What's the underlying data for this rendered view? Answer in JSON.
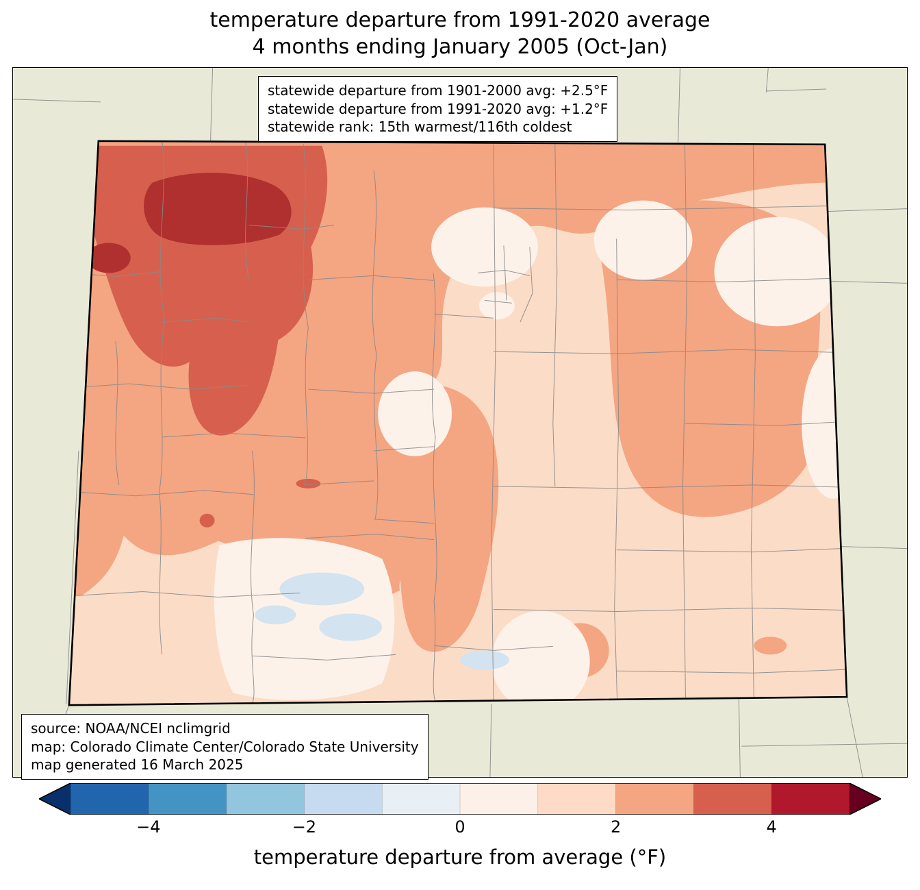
{
  "title": {
    "line1": "temperature departure from 1991-2020 average",
    "line2": "4 months ending January 2005 (Oct-Jan)"
  },
  "stats_box": {
    "line1": "statewide departure from 1901-2000 avg: +2.5°F",
    "line2": "statewide departure from 1991-2020 avg: +1.2°F",
    "line3": "statewide rank: 15th warmest/116th coldest"
  },
  "source_box": {
    "line1": "source: NOAA/NCEI nclimgrid",
    "line2": "map: Colorado Climate Center/Colorado State University",
    "line3": "map generated 16 March 2025"
  },
  "colorbar": {
    "label": "temperature departure from average (°F)",
    "vmin": -5,
    "vmax": 5,
    "ticks": [
      {
        "label": "−4",
        "value": -4
      },
      {
        "label": "−2",
        "value": -2
      },
      {
        "label": "0",
        "value": 0
      },
      {
        "label": "2",
        "value": 2
      },
      {
        "label": "4",
        "value": 4
      }
    ],
    "colors": [
      "#08306b",
      "#2166ac",
      "#4393c3",
      "#92c5de",
      "#c6dbef",
      "#e8f0f6",
      "#fdf0e8",
      "#fddbc7",
      "#f4a582",
      "#d6604d",
      "#b2182b",
      "#67001f"
    ]
  },
  "map": {
    "palette": {
      "outside": "#e9e9d8",
      "band0": "#fdf2ea",
      "band1": "#fbdcc7",
      "band2": "#f4a582",
      "band3": "#d6604d",
      "band4": "#b0302f",
      "cool0": "#d3e3f0",
      "county_line": "#8a8a8a",
      "border": "#000000"
    }
  },
  "chart_data": {
    "type": "choropleth_map",
    "region": "Colorado",
    "variable": "temperature departure from average (°F)",
    "baseline": "1991-2020 average",
    "period": "4 months ending January 2005 (Oct-Jan)",
    "colorbar_ticks": [
      -4,
      -2,
      0,
      2,
      4
    ],
    "colorbar_range": [
      -5,
      5
    ],
    "statewide_departure_from_1901_2000_avg_F": 2.5,
    "statewide_departure_from_1991_2020_avg_F": 1.2,
    "statewide_rank": "15th warmest/116th coldest"
  }
}
